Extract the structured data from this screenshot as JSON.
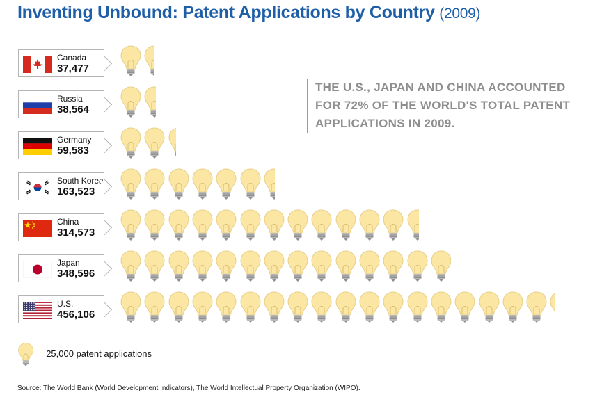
{
  "title": "Inventing Unbound: Patent Applications by Country",
  "title_year": "(2009)",
  "callout": "The U.S., Japan and China accounted for 72% of the world's total patent applications in 2009.",
  "legend": {
    "icon": "lightbulb-icon",
    "text": "= 25,000 patent applications"
  },
  "source": "Source: The World Bank (World Development Indicators), The World Intellectual Property Organization (WIPO).",
  "colors": {
    "title": "#1f5fa8",
    "bulb": "#fbe6a4",
    "callout": "#8e8e8e"
  },
  "chart_data": {
    "type": "bar",
    "unit_per_icon": 25000,
    "categories": [
      "Canada",
      "Russia",
      "Germany",
      "South Korea",
      "China",
      "Japan",
      "U.S."
    ],
    "values": [
      37477,
      38564,
      59583,
      163523,
      314573,
      348596,
      456106
    ],
    "value_labels": [
      "37,477",
      "38,564",
      "59,583",
      "163,523",
      "314,573",
      "348,596",
      "456,106"
    ],
    "flags": [
      "canada-flag",
      "russia-flag",
      "germany-flag",
      "south-korea-flag",
      "china-flag",
      "japan-flag",
      "usa-flag"
    ],
    "title": "Inventing Unbound: Patent Applications by Country"
  }
}
